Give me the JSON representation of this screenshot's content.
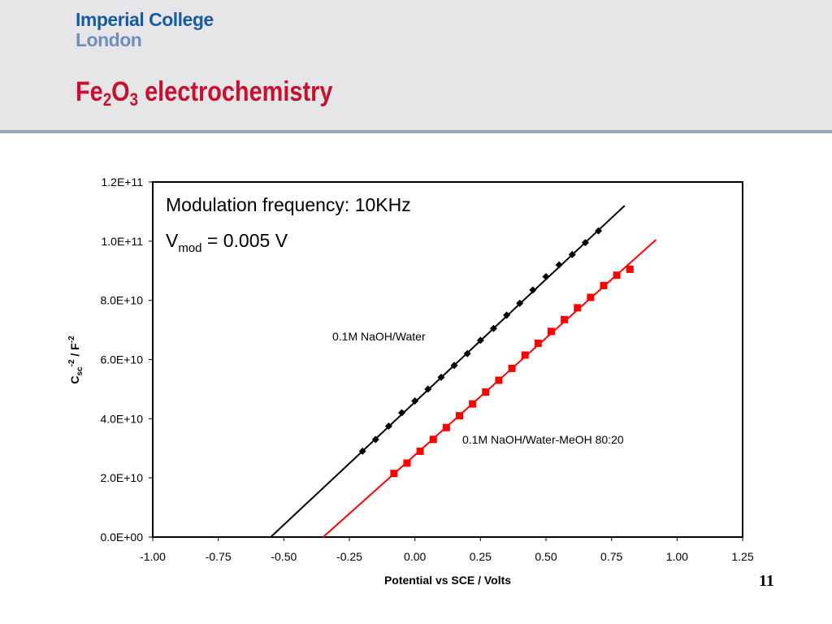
{
  "header": {
    "logo_line1": "Imperial College",
    "logo_line2": "London",
    "title_main": "Fe",
    "title_sub1": "2",
    "title_mid": "O",
    "title_sub2": "3",
    "title_rest": " electrochemistry",
    "title_color": "#c8102e",
    "logo_color": "#1a5aa0"
  },
  "page_number": "11",
  "chart_data": {
    "type": "scatter",
    "xlabel": "Potential vs SCE / Volts",
    "ylabel_parts": {
      "base": "C",
      "sub": "sc",
      "sup1": "-2",
      "mid": " / F",
      "sup2": "-2"
    },
    "xlim": [
      -1.0,
      1.25
    ],
    "ylim": [
      0,
      120000000000.0
    ],
    "x_ticks": [
      "-1.00",
      "-0.75",
      "-0.50",
      "-0.25",
      "0.00",
      "0.25",
      "0.50",
      "0.75",
      "1.00",
      "1.25"
    ],
    "x_tick_values": [
      -1.0,
      -0.75,
      -0.5,
      -0.25,
      0.0,
      0.25,
      0.5,
      0.75,
      1.0,
      1.25
    ],
    "y_ticks": [
      "0.0E+00",
      "2.0E+10",
      "4.0E+10",
      "6.0E+10",
      "8.0E+10",
      "1.0E+11",
      "1.2E+11"
    ],
    "y_tick_values": [
      0,
      20000000000.0,
      40000000000.0,
      60000000000.0,
      80000000000.0,
      100000000000.0,
      120000000000.0
    ],
    "annotation": {
      "line1": "Modulation frequency: 10KHz",
      "line2_base": "V",
      "line2_sub": "mod",
      "line2_rest": " =  0.005 V"
    },
    "series": [
      {
        "name": "0.1M NaOH/Water",
        "color": "#000000",
        "marker": "diamond",
        "fit_line": [
          [
            -0.55,
            0
          ],
          [
            0.8,
            112000000000.0
          ]
        ],
        "x": [
          -0.2,
          -0.15,
          -0.1,
          -0.05,
          0.0,
          0.05,
          0.1,
          0.15,
          0.2,
          0.25,
          0.3,
          0.35,
          0.4,
          0.45,
          0.5,
          0.55,
          0.6,
          0.65,
          0.7
        ],
        "y": [
          29000000000.0,
          33000000000.0,
          37500000000.0,
          42000000000.0,
          46000000000.0,
          50000000000.0,
          54000000000.0,
          58000000000.0,
          62000000000.0,
          66500000000.0,
          70500000000.0,
          75000000000.0,
          79000000000.0,
          83500000000.0,
          88000000000.0,
          92000000000.0,
          95500000000.0,
          99500000000.0,
          103500000000.0
        ]
      },
      {
        "name": "0.1M NaOH/Water-MeOH 80:20",
        "color": "#ff0000",
        "marker": "square",
        "fit_line": [
          [
            -0.35,
            0
          ],
          [
            0.92,
            100500000000.0
          ]
        ],
        "x": [
          -0.08,
          -0.03,
          0.02,
          0.07,
          0.12,
          0.17,
          0.22,
          0.27,
          0.32,
          0.37,
          0.42,
          0.47,
          0.52,
          0.57,
          0.62,
          0.67,
          0.72,
          0.77,
          0.82
        ],
        "y": [
          21500000000.0,
          25000000000.0,
          29000000000.0,
          33000000000.0,
          37000000000.0,
          41000000000.0,
          45000000000.0,
          49000000000.0,
          53000000000.0,
          57000000000.0,
          61500000000.0,
          65500000000.0,
          69500000000.0,
          73500000000.0,
          77500000000.0,
          81000000000.0,
          85000000000.0,
          88500000000.0,
          90500000000.0
        ]
      }
    ]
  }
}
